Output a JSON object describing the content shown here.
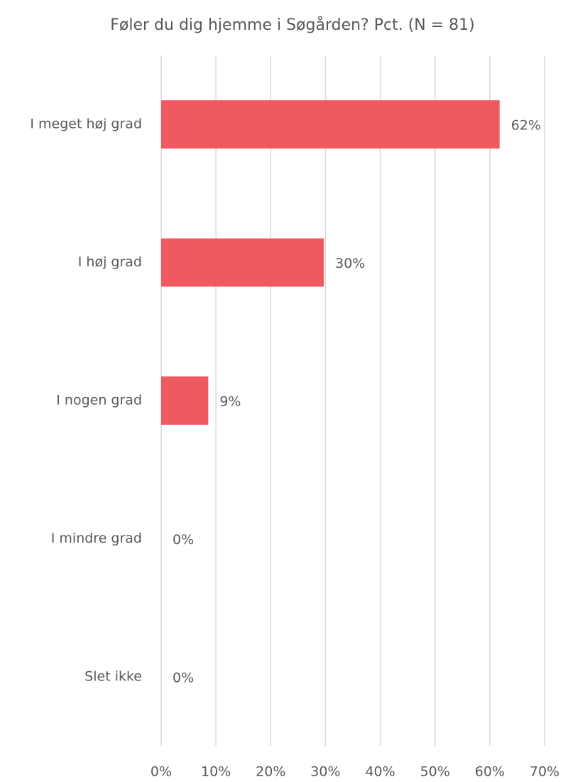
{
  "chart_data": {
    "type": "bar",
    "orientation": "horizontal",
    "title": "Føler du dig hjemme i Søgården? Pct. (N = 81)",
    "categories": [
      "I meget høj grad",
      "I høj grad",
      "I nogen grad",
      "I mindre grad",
      "Slet ikke"
    ],
    "values": [
      61.8,
      29.7,
      8.6,
      0,
      0
    ],
    "value_labels": [
      "62%",
      "30%",
      "9%",
      "0%",
      "0%"
    ],
    "color": "#ef5a60",
    "xlim": [
      0,
      70
    ],
    "xticks": [
      {
        "value": 0,
        "label": "0%"
      },
      {
        "value": 10,
        "label": "10%"
      },
      {
        "value": 20,
        "label": "20%"
      },
      {
        "value": 30,
        "label": "30%"
      },
      {
        "value": 40,
        "label": "40%"
      },
      {
        "value": 50,
        "label": "50%"
      },
      {
        "value": 60,
        "label": "60%"
      },
      {
        "value": 70,
        "label": "70%"
      }
    ],
    "grid": true
  }
}
